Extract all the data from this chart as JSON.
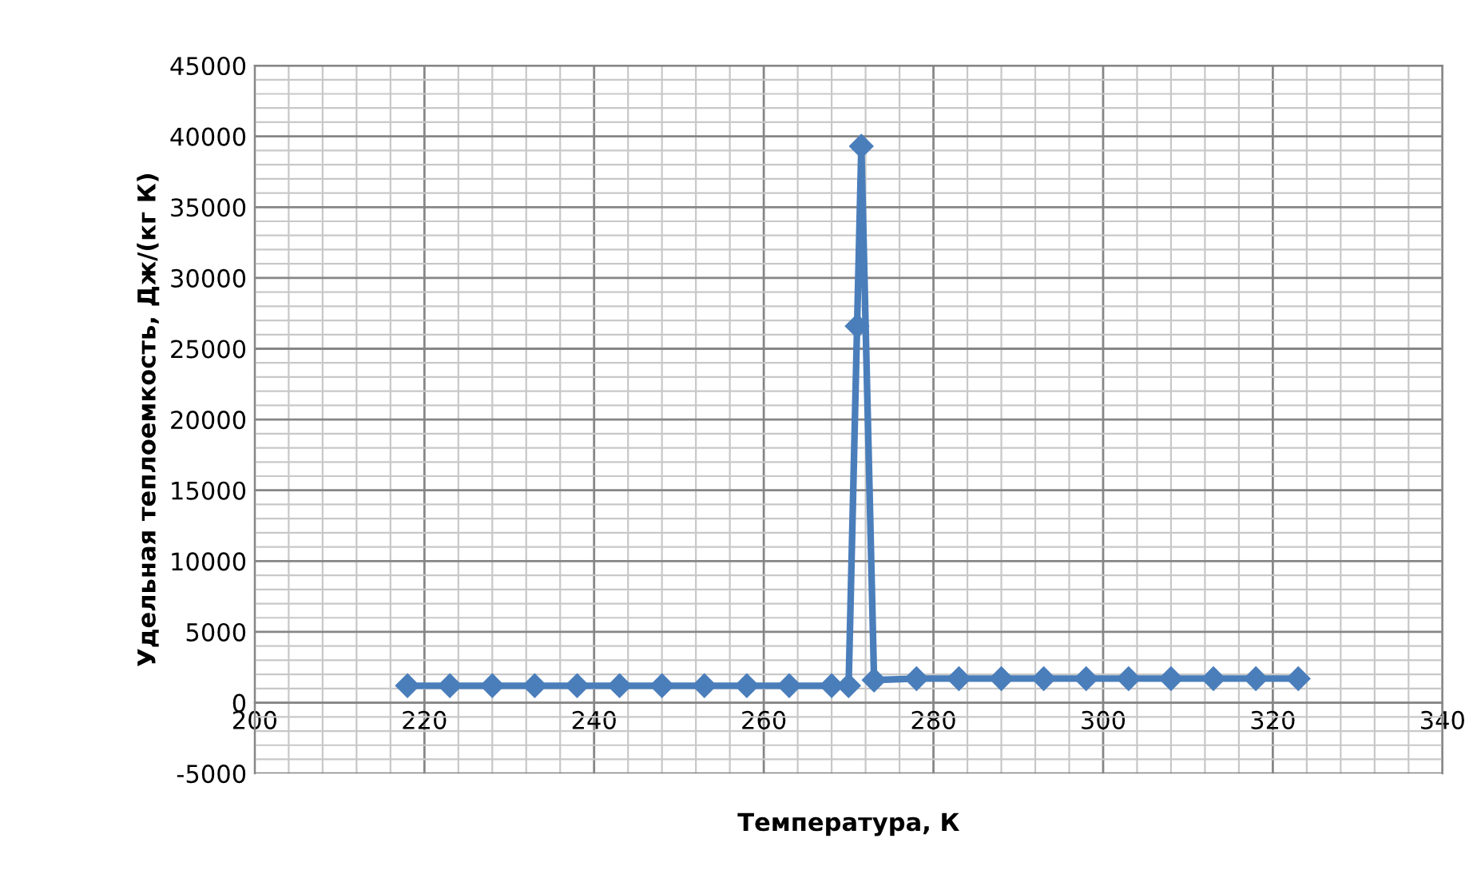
{
  "chart_data": {
    "type": "line",
    "xlabel": "Температура, К",
    "ylabel": "Удельная теплоемкость, Дж/(кг К)",
    "x": [
      218,
      223,
      228,
      233,
      238,
      243,
      248,
      253,
      258,
      263,
      268,
      270,
      271,
      271.5,
      273,
      278,
      283,
      288,
      293,
      298,
      303,
      308,
      313,
      318,
      323
    ],
    "series": [
      {
        "color": "#4a7ebb",
        "values": [
          1200,
          1200,
          1200,
          1200,
          1200,
          1200,
          1200,
          1200,
          1200,
          1200,
          1200,
          1200,
          26600,
          39300,
          1600,
          1700,
          1700,
          1700,
          1700,
          1700,
          1700,
          1700,
          1700,
          1700,
          1700
        ]
      }
    ],
    "xlim": [
      200,
      340
    ],
    "xticks": [
      200,
      220,
      240,
      260,
      280,
      300,
      320,
      340
    ],
    "ylim": [
      -5000,
      45000
    ],
    "yticks": [
      -5000,
      0,
      5000,
      10000,
      15000,
      20000,
      25000,
      30000,
      35000,
      40000,
      45000
    ],
    "grid": true,
    "marker": "diamond",
    "line_style": "solid",
    "legend": false
  }
}
